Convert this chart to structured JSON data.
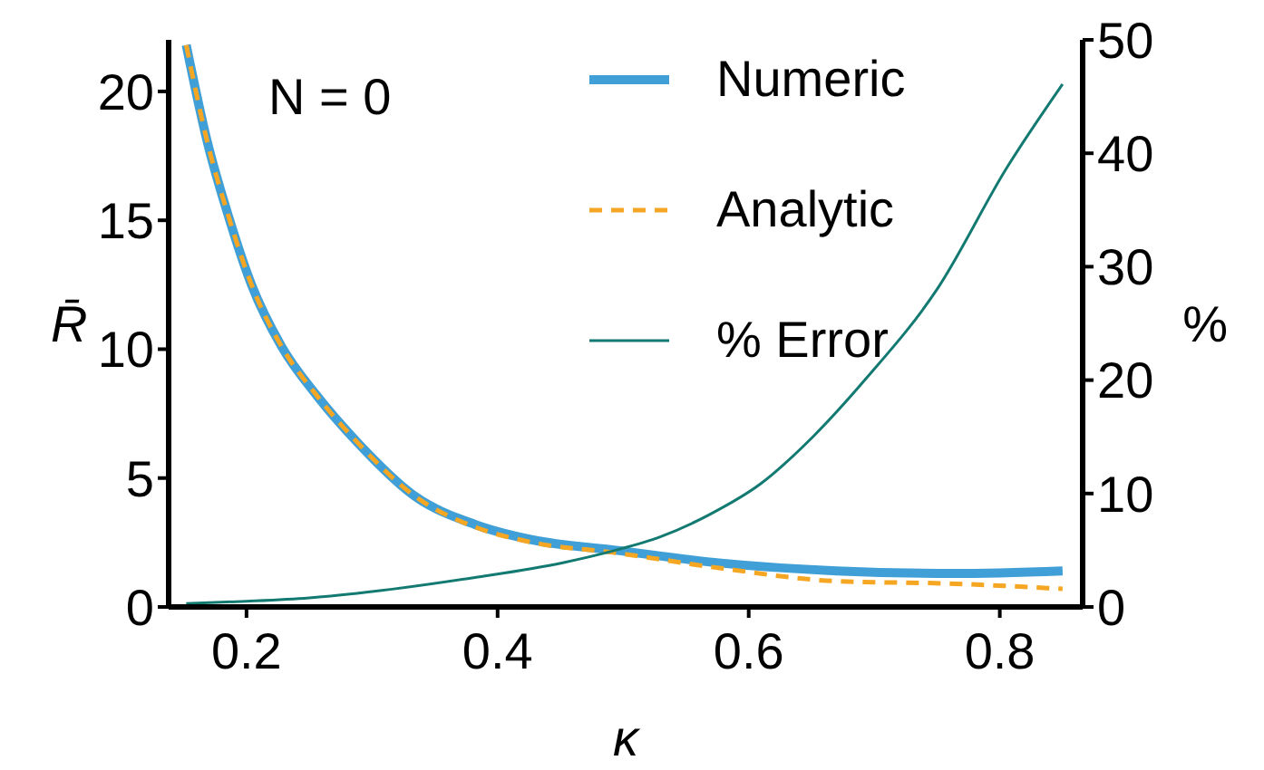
{
  "chart_data": {
    "type": "line",
    "xlabel": "κ",
    "ylabel": "R̄",
    "y2label": "%",
    "annotations": [
      "N = 0"
    ],
    "xlim": [
      0.138,
      0.866
    ],
    "xticks": [
      0.2,
      0.4,
      0.6,
      0.8
    ],
    "ylim": [
      0,
      22
    ],
    "yticks": [
      0,
      5,
      10,
      15,
      20
    ],
    "y2lim": [
      0,
      50
    ],
    "y2ticks": [
      0,
      10,
      20,
      30,
      40,
      50
    ],
    "legend": "top right",
    "series": [
      {
        "name": "Numeric",
        "color": "#3f9fd6",
        "line_style": "solid",
        "x": [
          0.152,
          0.169,
          0.186,
          0.204,
          0.228,
          0.256,
          0.288,
          0.334,
          0.382,
          0.428,
          0.494,
          0.578,
          0.67,
          0.764,
          0.85
        ],
        "values": [
          21.8,
          18.0,
          15.1,
          12.5,
          10.1,
          8.2,
          6.4,
          4.3,
          3.2,
          2.6,
          2.2,
          1.7,
          1.4,
          1.3,
          1.4
        ]
      },
      {
        "name": "Analytic",
        "color": "#f5a623",
        "line_style": "dashed",
        "x": [
          0.152,
          0.169,
          0.186,
          0.204,
          0.228,
          0.256,
          0.288,
          0.334,
          0.382,
          0.428,
          0.494,
          0.578,
          0.67,
          0.764,
          0.85
        ],
        "values": [
          21.8,
          18.0,
          15.1,
          12.5,
          10.1,
          8.2,
          6.4,
          4.3,
          3.1,
          2.5,
          2.1,
          1.5,
          1.0,
          0.9,
          0.7
        ]
      },
      {
        "name": "% Error",
        "color": "#137a72",
        "line_style": "solid",
        "axis": "y2",
        "x": [
          0.152,
          0.2,
          0.25,
          0.288,
          0.382,
          0.452,
          0.494,
          0.53,
          0.568,
          0.61,
          0.652,
          0.694,
          0.75,
          0.806,
          0.85
        ],
        "values": [
          0.3,
          0.5,
          0.8,
          1.2,
          2.6,
          3.9,
          5.0,
          6.2,
          8.1,
          10.9,
          15.1,
          20.2,
          28,
          38.8,
          46.1
        ]
      }
    ]
  }
}
